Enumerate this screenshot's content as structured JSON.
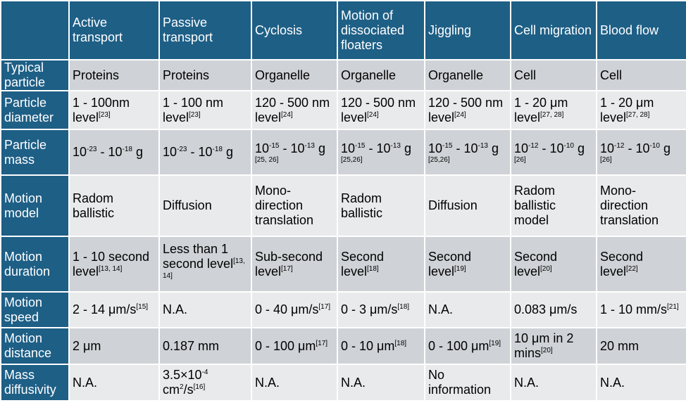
{
  "title": "",
  "corner": "",
  "columns": [
    "Active transport",
    "Passive transport",
    "Cyclosis",
    "Motion of dissociated floaters",
    "Jiggling",
    "Cell migration",
    "Blood flow"
  ],
  "rows": [
    {
      "label": "Typical particle",
      "cells": [
        {
          "text": "Proteins"
        },
        {
          "text": "Proteins"
        },
        {
          "text": "Organelle"
        },
        {
          "text": "Organelle"
        },
        {
          "text": "Organelle"
        },
        {
          "text": "Cell"
        },
        {
          "text": "Cell"
        }
      ]
    },
    {
      "label": "Particle diameter",
      "cells": [
        {
          "text": "1 - 100nm level",
          "sup": "[23]"
        },
        {
          "text": "1 - 100 nm level",
          "sup": "[23]"
        },
        {
          "text": "120 - 500 nm level",
          "sup": "[24]"
        },
        {
          "text": "120 - 500 nm level",
          "sup": "[24]"
        },
        {
          "text": "120 - 500 nm level",
          "sup": "[24]"
        },
        {
          "text": "1 - 20 μm level",
          "sup": "[27, 28]"
        },
        {
          "text": "1 - 20 μm level",
          "sup": "[27, 28]"
        }
      ]
    },
    {
      "label": "Particle mass",
      "cells": [
        {
          "base1": "10",
          "exp1": "-23",
          "mid": " - 10",
          "exp2": "-18",
          "unit": " g",
          "ref": ""
        },
        {
          "base1": "10",
          "exp1": "-23",
          "mid": " - 10",
          "exp2": "-18",
          "unit": " g",
          "ref": ""
        },
        {
          "base1": "10",
          "exp1": "-15",
          "mid": " - 10",
          "exp2": "-13",
          "unit": " g",
          "ref": "[25, 26]"
        },
        {
          "base1": "10",
          "exp1": "-15",
          "mid": " - 10",
          "exp2": "-13",
          "unit": " g",
          "ref": "[25,26]"
        },
        {
          "base1": "10",
          "exp1": "-15",
          "mid": " - 10",
          "exp2": "-13",
          "unit": " g",
          "ref": "[25,26]"
        },
        {
          "base1": "10",
          "exp1": "-12",
          "mid": " - 10",
          "exp2": "-10",
          "unit": " g",
          "ref": "[26]"
        },
        {
          "base1": "10",
          "exp1": "-12",
          "mid": " - 10",
          "exp2": "-10",
          "unit": " g",
          "ref": "[26]"
        }
      ]
    },
    {
      "label": "Motion model",
      "cells": [
        {
          "text": "Radom ballistic"
        },
        {
          "text": "Diffusion"
        },
        {
          "text": "Mono-direction translation"
        },
        {
          "text": "Radom ballistic"
        },
        {
          "text": "Diffusion"
        },
        {
          "text": "Radom ballistic model"
        },
        {
          "text": "Mono-direction translation"
        }
      ]
    },
    {
      "label": "Motion duration",
      "cells": [
        {
          "text": "1 - 10 second level",
          "sup": "[13, 14]"
        },
        {
          "text": "Less than 1 second level",
          "sup": "[13, 14]"
        },
        {
          "text": "Sub-second level",
          "sup": "[17]"
        },
        {
          "text": "Second level",
          "sup": "[18]"
        },
        {
          "text": "Second level",
          "sup": "[19]"
        },
        {
          "text": "Second level",
          "sup": "[20]"
        },
        {
          "text": "Second level",
          "sup": "[22]"
        }
      ]
    },
    {
      "label": "Motion speed",
      "cells": [
        {
          "text": "2 - 14 μm/s",
          "sup": "[15]"
        },
        {
          "text": "N.A."
        },
        {
          "text": "0 - 40 μm/s",
          "sup": "[17]"
        },
        {
          "text": "0 - 3 μm/s",
          "sup": "[18]"
        },
        {
          "text": "N.A."
        },
        {
          "text": "0.083 μm/s"
        },
        {
          "text": "1 - 10 mm/s",
          "sup": "[21]"
        }
      ]
    },
    {
      "label": "Motion distance",
      "cells": [
        {
          "text": "2 μm"
        },
        {
          "text": "0.187 mm"
        },
        {
          "text": "0 - 100 μm",
          "sup": "[17]"
        },
        {
          "text": "0 - 10 μm",
          "sup": "[18]"
        },
        {
          "text": "0 - 100 μm",
          "sup": "[19]"
        },
        {
          "text": "10 μm in 2 mins",
          "sup": "[20]"
        },
        {
          "text": "20 mm"
        }
      ]
    },
    {
      "label": "Mass diffusivity",
      "cells": [
        {
          "text": "N.A."
        },
        {
          "pre": "3.5×10",
          "e1": "-4",
          "mid": " cm",
          "e2": "2",
          "post": "/s",
          "sup": "[16]"
        },
        {
          "text": "N.A."
        },
        {
          "text": "N.A."
        },
        {
          "text": "No information"
        },
        {
          "text": "N.A."
        },
        {
          "text": "N.A."
        }
      ]
    }
  ]
}
